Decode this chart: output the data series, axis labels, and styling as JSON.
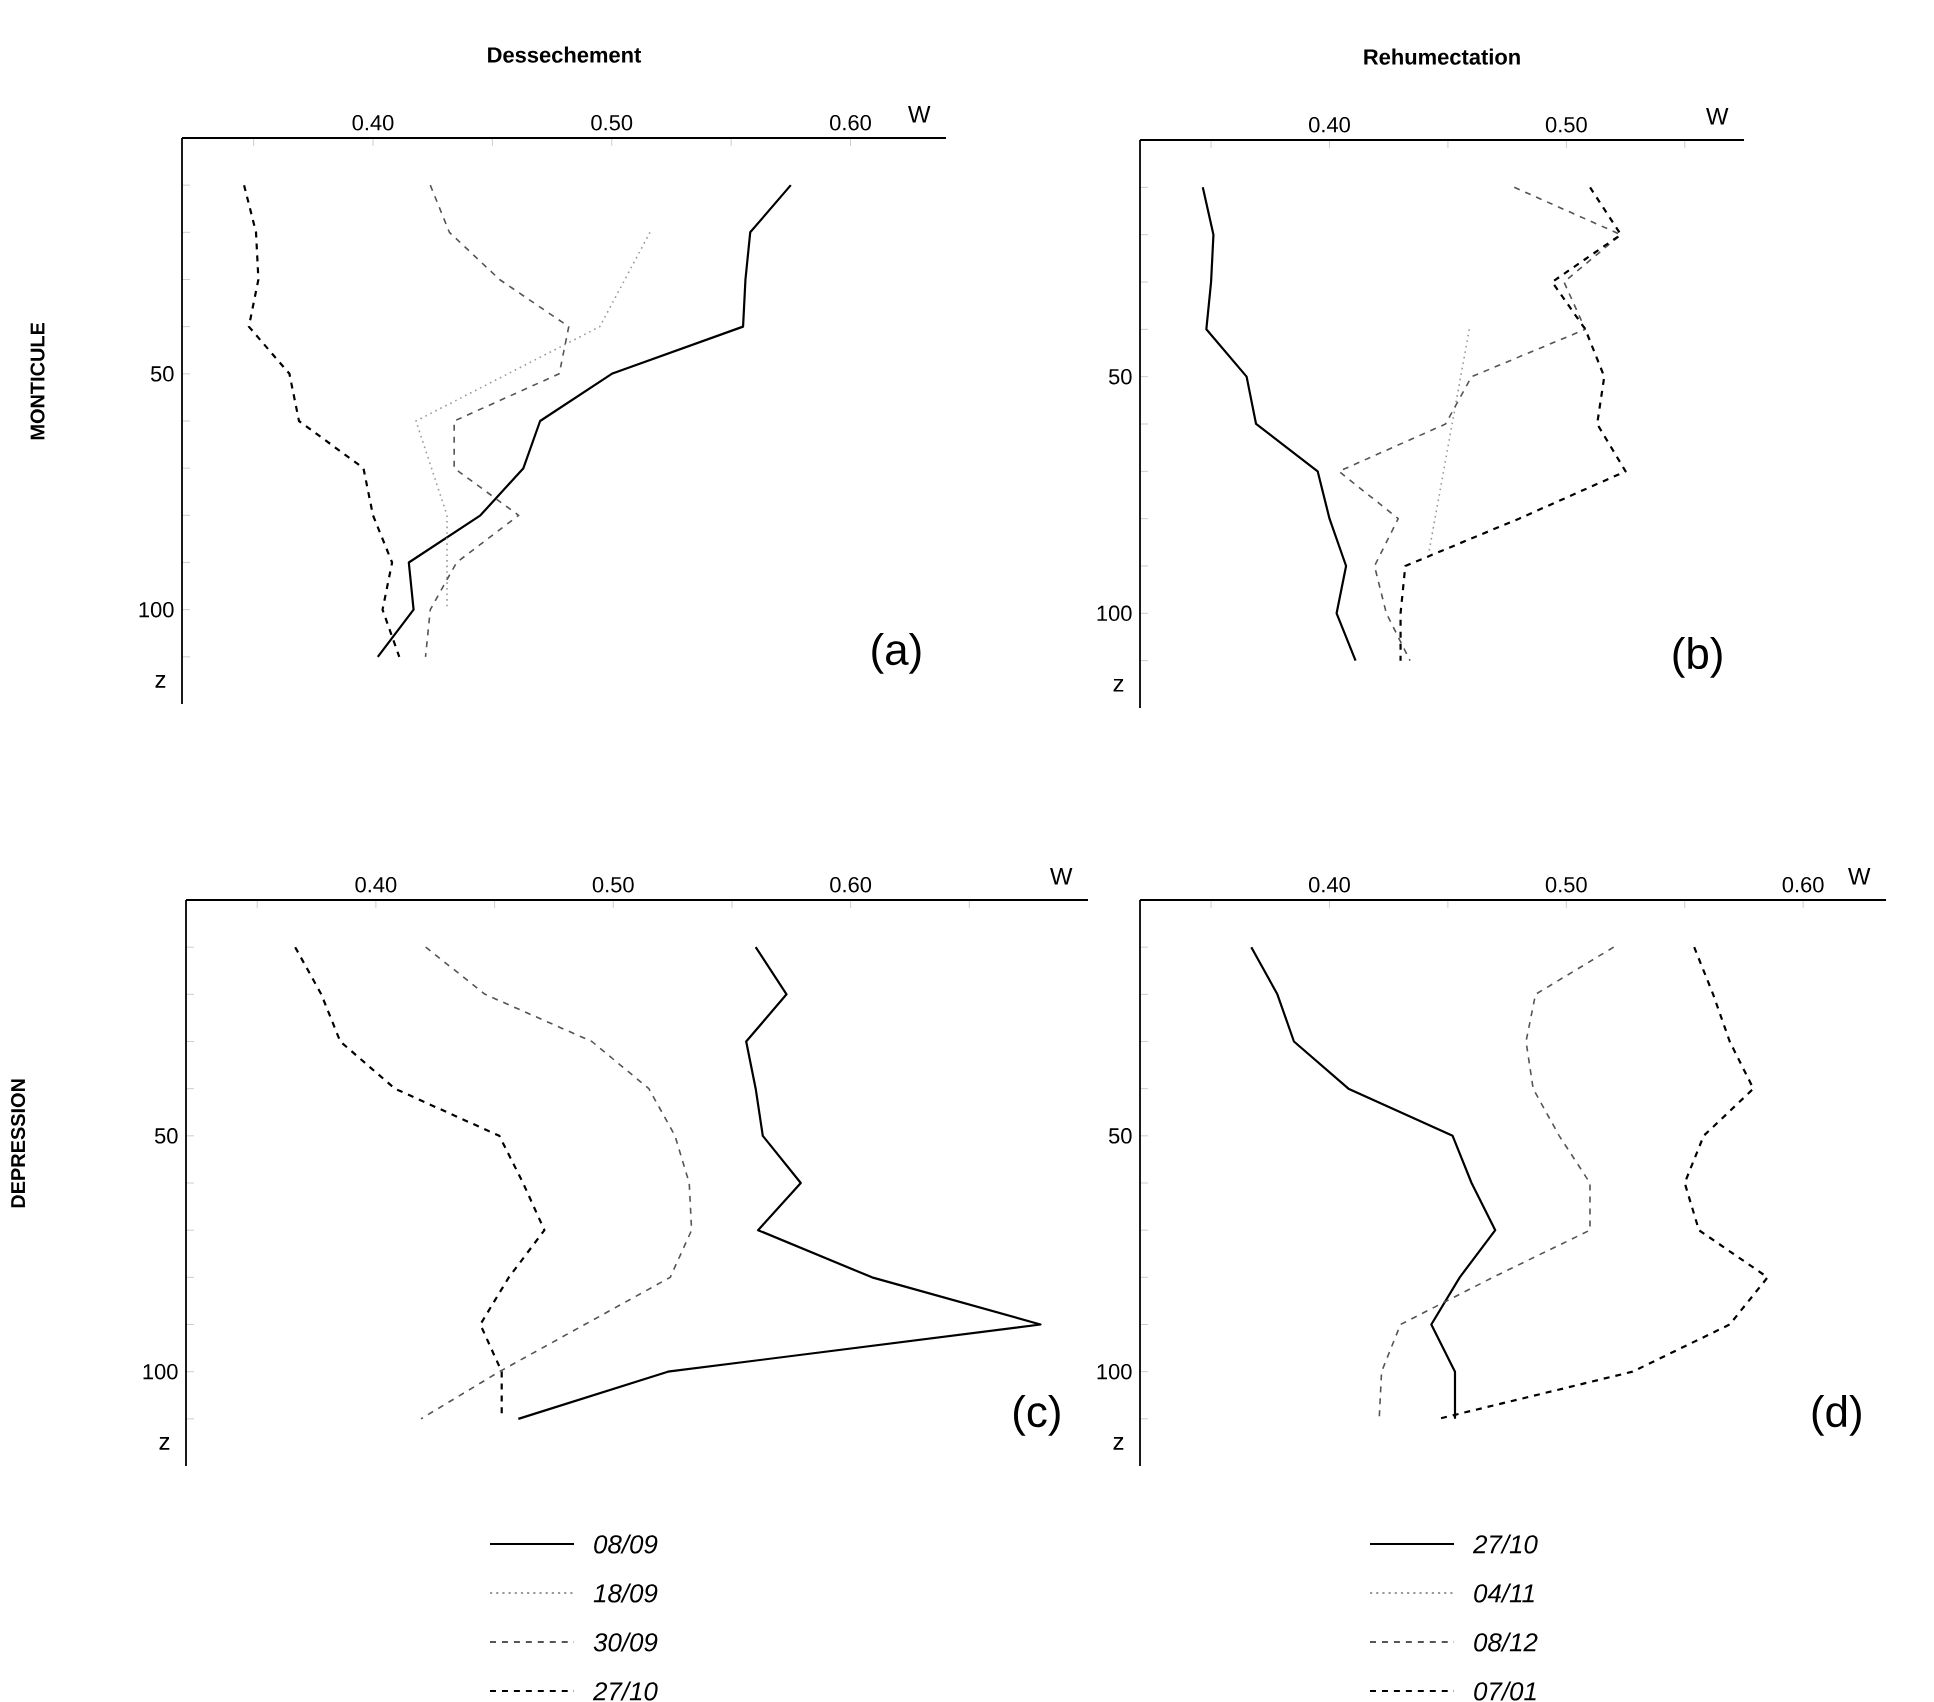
{
  "chart_data": [
    {
      "type": "line",
      "title": "Dessechement",
      "xlabel": "W",
      "ylabel": "z",
      "annotations": [
        "(a)",
        "MONTICULE"
      ],
      "legend": "bottom",
      "xlim": [
        0.32,
        0.64
      ],
      "xticks": [
        {
          "value": 0.35,
          "label": null
        },
        {
          "value": 0.4,
          "label": "0.40"
        },
        {
          "value": 0.45,
          "label": null
        },
        {
          "value": 0.5,
          "label": "0.50"
        },
        {
          "value": 0.55,
          "label": null
        },
        {
          "value": 0.6,
          "label": "0.60"
        }
      ],
      "ylim": [
        120,
        0
      ],
      "yticks": [
        {
          "value": 10,
          "label": null
        },
        {
          "value": 20,
          "label": null
        },
        {
          "value": 30,
          "label": null
        },
        {
          "value": 40,
          "label": null
        },
        50,
        {
          "value": 60,
          "label": null
        },
        {
          "value": 70,
          "label": null
        },
        {
          "value": 80,
          "label": null
        },
        {
          "value": 90,
          "label": null
        },
        100,
        {
          "value": 110,
          "label": null
        }
      ],
      "series": [
        {
          "name": "08/09",
          "color": "#000000",
          "line_style": "solid",
          "x": [
            0.575,
            0.558,
            0.556,
            0.555,
            0.5,
            0.47,
            0.463,
            0.445,
            0.415,
            0.417,
            0.402
          ],
          "values": [
            10,
            20,
            30,
            40,
            50,
            60,
            70,
            80,
            90,
            100,
            110
          ]
        },
        {
          "name": "18/09",
          "color": "#999999",
          "line_style": "dotted",
          "x": [
            0.516,
            0.495,
            0.418,
            0.431,
            0.431
          ],
          "values": [
            20,
            40,
            60,
            80,
            100
          ]
        },
        {
          "name": "30/09",
          "color": "#555555",
          "line_style": "dashed",
          "x": [
            0.424,
            0.432,
            0.453,
            0.482,
            0.478,
            0.434,
            0.434,
            0.461,
            0.435,
            0.424,
            0.422
          ],
          "values": [
            10,
            20,
            30,
            40,
            50,
            60,
            70,
            80,
            90,
            100,
            110
          ]
        },
        {
          "name": "27/10",
          "color": "#000000",
          "line_style": "dashed",
          "x": [
            0.346,
            0.351,
            0.352,
            0.348,
            0.365,
            0.369,
            0.396,
            0.4,
            0.408,
            0.404,
            0.411
          ],
          "values": [
            10,
            20,
            30,
            40,
            50,
            60,
            70,
            80,
            90,
            100,
            110
          ]
        }
      ]
    },
    {
      "type": "line",
      "title": "Rehumectation",
      "xlabel": "W",
      "ylabel": "z",
      "annotations": [
        "(b)"
      ],
      "legend": "bottom",
      "xlim": [
        0.32,
        0.575
      ],
      "xticks": [
        {
          "value": 0.35,
          "label": null
        },
        {
          "value": 0.4,
          "label": "0.40"
        },
        {
          "value": 0.45,
          "label": null
        },
        {
          "value": 0.5,
          "label": "0.50"
        },
        {
          "value": 0.55,
          "label": null
        }
      ],
      "ylim": [
        120,
        0
      ],
      "yticks": [
        {
          "value": 10,
          "label": null
        },
        {
          "value": 20,
          "label": null
        },
        {
          "value": 30,
          "label": null
        },
        {
          "value": 40,
          "label": null
        },
        50,
        {
          "value": 60,
          "label": null
        },
        {
          "value": 70,
          "label": null
        },
        {
          "value": 80,
          "label": null
        },
        {
          "value": 90,
          "label": null
        },
        100,
        {
          "value": 110,
          "label": null
        }
      ],
      "series": [
        {
          "name": "27/10",
          "color": "#000000",
          "line_style": "solid",
          "x": [
            0.3465,
            0.351,
            0.35,
            0.348,
            0.365,
            0.369,
            0.395,
            0.4,
            0.407,
            0.403,
            0.411
          ],
          "values": [
            10,
            20,
            30,
            40,
            50,
            60,
            70,
            80,
            90,
            100,
            110
          ]
        },
        {
          "name": "04/11",
          "color": "#999999",
          "line_style": "dotted",
          "x": [
            0.459,
            0.442
          ],
          "values": [
            40,
            87
          ]
        },
        {
          "name": "08/12",
          "color": "#555555",
          "line_style": "dashed",
          "x": [
            0.478,
            0.523,
            0.499,
            0.508,
            0.46,
            0.449,
            0.404,
            0.429,
            0.419,
            0.424,
            0.434
          ],
          "values": [
            10,
            20,
            30,
            40,
            50,
            60,
            70,
            80,
            90,
            100,
            110
          ]
        },
        {
          "name": "07/01",
          "color": "#000000",
          "line_style": "dashed",
          "x": [
            0.51,
            0.523,
            0.494,
            0.508,
            0.516,
            0.513,
            0.525,
            0.48,
            0.432,
            0.43,
            0.43
          ],
          "values": [
            10,
            20,
            30,
            40,
            50,
            60,
            70,
            80,
            90,
            100,
            110
          ]
        }
      ]
    },
    {
      "type": "line",
      "xlabel": "W",
      "ylabel": "z",
      "annotations": [
        "(c)",
        "DEPRESSION"
      ],
      "xlim": [
        0.32,
        0.7
      ],
      "xticks": [
        {
          "value": 0.35,
          "label": null
        },
        {
          "value": 0.4,
          "label": "0.40"
        },
        {
          "value": 0.45,
          "label": null
        },
        {
          "value": 0.5,
          "label": "0.50"
        },
        {
          "value": 0.55,
          "label": null
        },
        {
          "value": 0.6,
          "label": "0.60"
        },
        {
          "value": 0.65,
          "label": null
        }
      ],
      "ylim": [
        120,
        0
      ],
      "yticks": [
        {
          "value": 10,
          "label": null
        },
        {
          "value": 20,
          "label": null
        },
        {
          "value": 30,
          "label": null
        },
        {
          "value": 40,
          "label": null
        },
        50,
        {
          "value": 60,
          "label": null
        },
        {
          "value": 70,
          "label": null
        },
        {
          "value": 80,
          "label": null
        },
        {
          "value": 90,
          "label": null
        },
        100,
        {
          "value": 110,
          "label": null
        }
      ],
      "series": [
        {
          "color": "#000000",
          "line_style": "solid",
          "x": [
            0.56,
            0.573,
            0.556,
            0.56,
            0.563,
            0.579,
            0.561,
            0.609,
            0.68,
            0.523,
            0.46
          ],
          "values": [
            10,
            20,
            30,
            40,
            50,
            60,
            70,
            80,
            90,
            100,
            110
          ]
        },
        {
          "color": "#555555",
          "line_style": "dashed",
          "x": [
            0.421,
            0.446,
            0.491,
            0.515,
            0.526,
            0.532,
            0.533,
            0.524,
            0.488,
            0.452,
            0.419
          ],
          "values": [
            10,
            20,
            30,
            40,
            50,
            60,
            70,
            80,
            90,
            100,
            110
          ]
        },
        {
          "color": "#000000",
          "line_style": "dashed",
          "x": [
            0.366,
            0.377,
            0.385,
            0.408,
            0.452,
            0.462,
            0.471,
            0.456,
            0.444,
            0.453,
            0.453
          ],
          "values": [
            10,
            20,
            30,
            40,
            50,
            60,
            70,
            80,
            90,
            100,
            110
          ]
        }
      ]
    },
    {
      "type": "line",
      "xlabel": "W",
      "ylabel": "z",
      "annotations": [
        "(d)"
      ],
      "xlim": [
        0.32,
        0.635
      ],
      "xticks": [
        {
          "value": 0.35,
          "label": null
        },
        {
          "value": 0.4,
          "label": "0.40"
        },
        {
          "value": 0.45,
          "label": null
        },
        {
          "value": 0.5,
          "label": "0.50"
        },
        {
          "value": 0.55,
          "label": null
        },
        {
          "value": 0.6,
          "label": "0.60"
        }
      ],
      "ylim": [
        120,
        0
      ],
      "yticks": [
        {
          "value": 10,
          "label": null
        },
        {
          "value": 20,
          "label": null
        },
        {
          "value": 30,
          "label": null
        },
        {
          "value": 40,
          "label": null
        },
        50,
        {
          "value": 60,
          "label": null
        },
        {
          "value": 70,
          "label": null
        },
        {
          "value": 80,
          "label": null
        },
        {
          "value": 90,
          "label": null
        },
        100,
        {
          "value": 110,
          "label": null
        }
      ],
      "series": [
        {
          "color": "#000000",
          "line_style": "solid",
          "x": [
            0.367,
            0.378,
            0.385,
            0.408,
            0.452,
            0.46,
            0.47,
            0.455,
            0.443,
            0.453,
            0.453
          ],
          "values": [
            10,
            20,
            30,
            40,
            50,
            60,
            70,
            80,
            90,
            100,
            110
          ]
        },
        {
          "color": "#555555",
          "line_style": "dashed",
          "x": [
            0.52,
            0.487,
            0.483,
            0.486,
            0.497,
            0.51,
            0.51,
            0.469,
            0.43,
            0.422,
            0.421
          ],
          "values": [
            10,
            20,
            30,
            40,
            50,
            60,
            70,
            80,
            90,
            100,
            110
          ]
        },
        {
          "color": "#000000",
          "line_style": "dashed",
          "x": [
            0.554,
            0.562,
            0.569,
            0.579,
            0.558,
            0.55,
            0.556,
            0.585,
            0.569,
            0.528,
            0.446
          ],
          "values": [
            10,
            20,
            30,
            40,
            50,
            60,
            70,
            80,
            90,
            100,
            110
          ]
        }
      ]
    }
  ]
}
